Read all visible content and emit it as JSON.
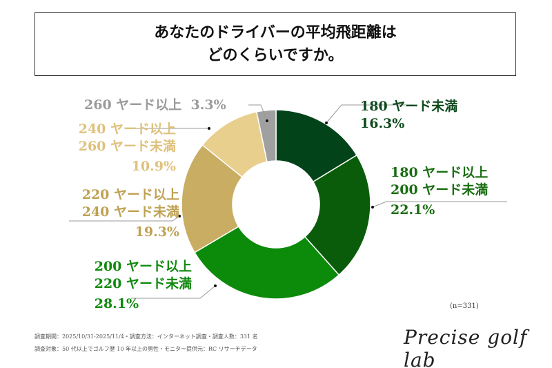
{
  "title_lines": [
    "あなたのドライバーの平均飛距離は",
    "どのくらいですか。"
  ],
  "chart_data": {
    "type": "pie",
    "donut": true,
    "categories": [
      "180 ヤード未満",
      "180 ヤード以上 200 ヤード未満",
      "200 ヤード以上 220 ヤード未満",
      "220 ヤード以上 240 ヤード未満",
      "240 ヤード以上 260 ヤード未満",
      "260 ヤード以上"
    ],
    "values": [
      16.3,
      22.1,
      28.1,
      19.3,
      10.9,
      3.3
    ],
    "unit": "%",
    "colors": [
      "#02431a",
      "#0a5c0a",
      "#0c8a0a",
      "#c9ad62",
      "#e9cf8e",
      "#a0a0a0"
    ],
    "label_colors": [
      "#0d4a1c",
      "#1a6e12",
      "#12890f",
      "#bfa152",
      "#dfc17c",
      "#9a9a9a"
    ],
    "labels": [
      {
        "lines": [
          "180 ヤード未満"
        ],
        "value": "16.3%"
      },
      {
        "lines": [
          "180 ヤード以上",
          "200 ヤード未満"
        ],
        "value": "22.1%"
      },
      {
        "lines": [
          "200 ヤード以上",
          "220 ヤード未満"
        ],
        "value": "28.1%"
      },
      {
        "lines": [
          "220 ヤード以上",
          "240 ヤード未満"
        ],
        "value": "19.3%"
      },
      {
        "lines": [
          "240 ヤード以上",
          "260 ヤード未満"
        ],
        "value": "10.9%"
      },
      {
        "lines": [
          "260 ヤード以上"
        ],
        "value": "3.3%"
      }
    ]
  },
  "sample_size": "(n=331)",
  "notes": [
    "調査期間：2025/10/31-2025/11/4・調査方法：インターネット調査・調査人数：331 名",
    "調査対象：50 代以上でゴルフ歴 10 年以上の男性・モニター提供元：RC リサーチデータ"
  ],
  "logo": "Precise golf lab"
}
